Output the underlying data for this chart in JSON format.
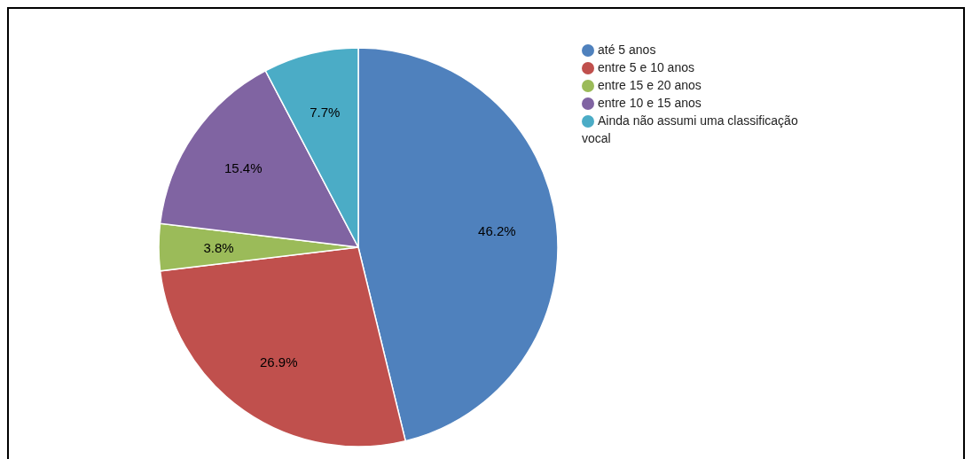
{
  "chart_data": {
    "type": "pie",
    "categories": [
      "até 5 anos",
      "entre 5 e 10 anos",
      "entre 15 e 20 anos",
      "entre 10 e 15 anos",
      "Ainda não assumi uma classificação vocal"
    ],
    "values": [
      46.2,
      26.9,
      3.8,
      15.4,
      7.7
    ],
    "colors": [
      "#4f81bd",
      "#c0504d",
      "#9bbb59",
      "#8064a2",
      "#4bacc6"
    ],
    "value_labels": [
      "46.2%",
      "26.9%",
      "3.8%",
      "15.4%",
      "7.7%"
    ],
    "legend": "top right"
  }
}
